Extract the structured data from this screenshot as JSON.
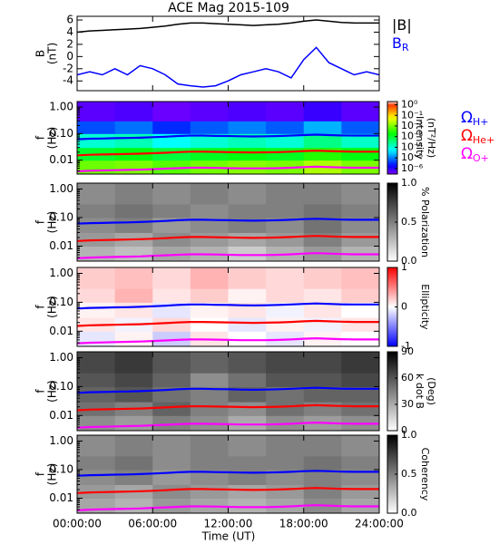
{
  "chart_data": {
    "type": "multi-panel",
    "title": "ACE Mag 2015-109",
    "xlabel": "Time (UT)",
    "xlim": [
      0,
      24
    ],
    "xticks": [
      {
        "value": 0,
        "label": "00:00:00"
      },
      {
        "value": 6,
        "label": "06:00:00"
      },
      {
        "value": 12,
        "label": "12:00:00"
      },
      {
        "value": 18,
        "label": "18:00:00"
      },
      {
        "value": 24,
        "label": "24:00:00"
      }
    ],
    "panels": [
      {
        "type": "line",
        "ylabel": [
          "B",
          "(nT)"
        ],
        "ylim": [
          -5.6,
          6.6
        ],
        "yticks": [
          -4,
          -2,
          0,
          2,
          4,
          6
        ],
        "x": [
          0,
          1,
          2,
          3,
          4,
          5,
          6,
          7,
          8,
          9,
          10,
          11,
          12,
          13,
          14,
          15,
          16,
          17,
          18,
          19,
          20,
          21,
          22,
          23,
          24
        ],
        "series": [
          {
            "name": "|B|",
            "color": "#000000",
            "values": [
              4,
              4.2,
              4.3,
              4.4,
              4.5,
              4.6,
              4.8,
              5,
              5.3,
              5.5,
              5.5,
              5.4,
              5.3,
              5.2,
              5.1,
              5.2,
              5.3,
              5.5,
              5.8,
              6,
              5.8,
              5.6,
              5.5,
              5.5,
              5.5
            ]
          },
          {
            "name": "B",
            "subscript": "R",
            "color": "#0000ff",
            "values": [
              -3,
              -2.5,
              -3,
              -2,
              -3,
              -1.5,
              -2,
              -3,
              -4.5,
              -4.8,
              -5,
              -4.8,
              -4,
              -3,
              -2.5,
              -2,
              -2.5,
              -3.5,
              -0.5,
              1.5,
              -1,
              -2,
              -3,
              -2.5,
              -3
            ]
          }
        ]
      },
      {
        "type": "heatmap",
        "ylabel": [
          "f",
          "(Hz)"
        ],
        "log_y": true,
        "ylim": [
          0.003,
          1.6
        ],
        "yticks": [
          {
            "value": 1,
            "label": "1.00"
          },
          {
            "value": 0.1,
            "label": "0.10"
          },
          {
            "value": 0.01,
            "label": "0.01"
          }
        ],
        "time_bins": [
          0,
          3,
          6,
          9,
          12,
          15,
          18,
          21,
          24
        ],
        "freq_bins": [
          0.003,
          0.01,
          0.03,
          0.1,
          0.3,
          1.6
        ],
        "z": [
          [
            0.008,
            0.01,
            0.006,
            0.009,
            0.012,
            0.01,
            0.02,
            0.01
          ],
          [
            0.001,
            0.0015,
            0.0008,
            0.0012,
            0.0015,
            0.0012,
            0.003,
            0.0015
          ],
          [
            0.0001,
            0.00015,
            6e-05,
            0.0001,
            0.00015,
            0.0001,
            0.0003,
            0.00012
          ],
          [
            5e-06,
            8e-06,
            3e-06,
            6e-06,
            1e-05,
            6e-06,
            2e-05,
            6e-06
          ],
          [
            5e-07,
            6e-07,
            4e-07,
            5e-07,
            6e-07,
            5e-07,
            8e-07,
            5e-07
          ]
        ],
        "colormap": "rainbow",
        "log_c": true,
        "clim": [
          3e-07,
          2
        ],
        "cticks": [
          {
            "value": 1,
            "label": "10⁰"
          },
          {
            "value": 0.1,
            "label": "10⁻¹"
          },
          {
            "value": 0.01,
            "label": "10⁻²"
          },
          {
            "value": 0.001,
            "label": "10⁻³"
          },
          {
            "value": 0.0001,
            "label": "10⁻⁴"
          },
          {
            "value": 1e-05,
            "label": "10⁻⁵"
          },
          {
            "value": 1e-06,
            "label": "10⁻⁶"
          }
        ],
        "clabel": [
          "Intensity",
          "(nT²/Hz)"
        ]
      },
      {
        "type": "heatmap",
        "ylabel": [
          "f",
          "(Hz)"
        ],
        "log_y": true,
        "ylim": [
          0.003,
          1.6
        ],
        "yticks": [
          {
            "value": 1,
            "label": "1.00"
          },
          {
            "value": 0.1,
            "label": "0.10"
          },
          {
            "value": 0.01,
            "label": "0.01"
          }
        ],
        "time_bins": [
          0,
          3,
          6,
          9,
          12,
          15,
          18,
          21,
          24
        ],
        "freq_bins": [
          0.003,
          0.01,
          0.03,
          0.1,
          0.3,
          1.6
        ],
        "z": [
          [
            0.3,
            0.25,
            0.35,
            0.3,
            0.2,
            0.3,
            0.4,
            0.3
          ],
          [
            0.4,
            0.35,
            0.45,
            0.4,
            0.35,
            0.4,
            0.5,
            0.4
          ],
          [
            0.45,
            0.5,
            0.4,
            0.45,
            0.5,
            0.45,
            0.55,
            0.45
          ],
          [
            0.5,
            0.55,
            0.5,
            0.45,
            0.5,
            0.5,
            0.55,
            0.5
          ],
          [
            0.45,
            0.5,
            0.45,
            0.5,
            0.45,
            0.5,
            0.5,
            0.45
          ]
        ],
        "colormap": "gray_r",
        "clim": [
          0,
          1
        ],
        "cticks": [
          {
            "value": 0,
            "label": "0.0"
          },
          {
            "value": 0.5,
            "label": "0.5"
          },
          {
            "value": 1,
            "label": "1.0"
          }
        ],
        "clabel": [
          "% Polarization"
        ]
      },
      {
        "type": "heatmap",
        "ylabel": [
          "f",
          "(Hz)"
        ],
        "log_y": true,
        "ylim": [
          0.003,
          1.6
        ],
        "yticks": [
          {
            "value": 1,
            "label": "1.00"
          },
          {
            "value": 0.1,
            "label": "0.10"
          },
          {
            "value": 0.01,
            "label": "0.01"
          }
        ],
        "time_bins": [
          0,
          3,
          6,
          9,
          12,
          15,
          18,
          21,
          24
        ],
        "freq_bins": [
          0.003,
          0.01,
          0.03,
          0.1,
          0.3,
          1.6
        ],
        "z": [
          [
            -0.1,
            0.05,
            -0.2,
            0.1,
            0,
            -0.1,
            0.05,
            0
          ],
          [
            0.1,
            -0.05,
            0.15,
            0,
            -0.1,
            0.05,
            -0.05,
            0.1
          ],
          [
            0.05,
            0.1,
            -0.1,
            0.05,
            0.1,
            -0.05,
            0.1,
            0
          ],
          [
            0.15,
            0.3,
            0.1,
            0.2,
            0.05,
            0.15,
            0.1,
            0.2
          ],
          [
            0.2,
            0.25,
            0.15,
            0.3,
            0.2,
            0.15,
            0.2,
            0.25
          ]
        ],
        "colormap": "bwr",
        "clim": [
          -1,
          1
        ],
        "cticks": [
          -1,
          0,
          1
        ],
        "clabel": [
          "Ellipticity"
        ]
      },
      {
        "type": "heatmap",
        "ylabel": [
          "f",
          "(Hz)"
        ],
        "log_y": true,
        "ylim": [
          0.003,
          1.6
        ],
        "yticks": [
          {
            "value": 1,
            "label": "1.00"
          },
          {
            "value": 0.1,
            "label": "0.10"
          },
          {
            "value": 0.01,
            "label": "0.01"
          }
        ],
        "time_bins": [
          0,
          3,
          6,
          9,
          12,
          15,
          18,
          21,
          24
        ],
        "freq_bins": [
          0.003,
          0.01,
          0.03,
          0.1,
          0.3,
          1.6
        ],
        "z": [
          [
            40,
            35,
            45,
            40,
            30,
            40,
            35,
            40
          ],
          [
            50,
            45,
            55,
            45,
            40,
            50,
            45,
            50
          ],
          [
            55,
            60,
            50,
            45,
            55,
            50,
            55,
            55
          ],
          [
            60,
            65,
            55,
            40,
            50,
            60,
            60,
            65
          ],
          [
            65,
            70,
            60,
            55,
            60,
            65,
            65,
            70
          ]
        ],
        "colormap": "gray_r",
        "clim": [
          0,
          90
        ],
        "cticks": [
          0,
          30,
          60,
          90
        ],
        "clabel": [
          "k dot B",
          "(Deg)"
        ]
      },
      {
        "type": "heatmap",
        "ylabel": [
          "f",
          "(Hz)"
        ],
        "log_y": true,
        "ylim": [
          0.003,
          1.6
        ],
        "yticks": [
          {
            "value": 1,
            "label": "1.00"
          },
          {
            "value": 0.1,
            "label": "0.10"
          },
          {
            "value": 0.01,
            "label": "0.01"
          }
        ],
        "time_bins": [
          0,
          3,
          6,
          9,
          12,
          15,
          18,
          21,
          24
        ],
        "freq_bins": [
          0.003,
          0.01,
          0.03,
          0.1,
          0.3,
          1.6
        ],
        "z": [
          [
            0.35,
            0.3,
            0.4,
            0.35,
            0.3,
            0.35,
            0.45,
            0.35
          ],
          [
            0.4,
            0.35,
            0.45,
            0.4,
            0.35,
            0.4,
            0.5,
            0.4
          ],
          [
            0.45,
            0.5,
            0.4,
            0.45,
            0.5,
            0.45,
            0.5,
            0.45
          ],
          [
            0.5,
            0.55,
            0.45,
            0.5,
            0.5,
            0.5,
            0.55,
            0.5
          ],
          [
            0.45,
            0.5,
            0.45,
            0.5,
            0.45,
            0.5,
            0.5,
            0.45
          ]
        ],
        "colormap": "gray_r",
        "clim": [
          0,
          1
        ],
        "cticks": [
          {
            "value": 0,
            "label": "0.0"
          },
          {
            "value": 0.5,
            "label": "0.5"
          },
          {
            "value": 1,
            "label": "1.0"
          }
        ],
        "clabel": [
          "Coherency"
        ]
      }
    ],
    "gyrofrequencies": {
      "x": [
        0,
        1,
        2,
        3,
        4,
        5,
        6,
        7,
        8,
        9,
        10,
        11,
        12,
        13,
        14,
        15,
        16,
        17,
        18,
        19,
        20,
        21,
        22,
        23,
        24
      ],
      "series": [
        {
          "name": "Ω",
          "subscript": "H+",
          "color": "#0000ff",
          "values": [
            0.061,
            0.064,
            0.065,
            0.067,
            0.068,
            0.07,
            0.073,
            0.076,
            0.081,
            0.084,
            0.084,
            0.082,
            0.081,
            0.079,
            0.078,
            0.079,
            0.081,
            0.084,
            0.088,
            0.091,
            0.088,
            0.085,
            0.084,
            0.084,
            0.084
          ]
        },
        {
          "name": "Ω",
          "subscript": "He+",
          "color": "#ff0000",
          "values": [
            0.0152,
            0.016,
            0.0163,
            0.0167,
            0.0171,
            0.0175,
            0.0182,
            0.019,
            0.0201,
            0.0209,
            0.0209,
            0.0205,
            0.0201,
            0.0198,
            0.0194,
            0.0198,
            0.0201,
            0.0209,
            0.022,
            0.0228,
            0.022,
            0.0213,
            0.0209,
            0.0209,
            0.0209
          ]
        },
        {
          "name": "Ω",
          "subscript": "O+",
          "color": "#ff00ff",
          "values": [
            0.0038,
            0.004,
            0.0041,
            0.0042,
            0.0043,
            0.0044,
            0.0046,
            0.0048,
            0.005,
            0.0052,
            0.0052,
            0.0051,
            0.005,
            0.0049,
            0.0049,
            0.0049,
            0.005,
            0.0052,
            0.0055,
            0.0057,
            0.0055,
            0.0053,
            0.0052,
            0.0052,
            0.0052
          ]
        }
      ]
    }
  }
}
